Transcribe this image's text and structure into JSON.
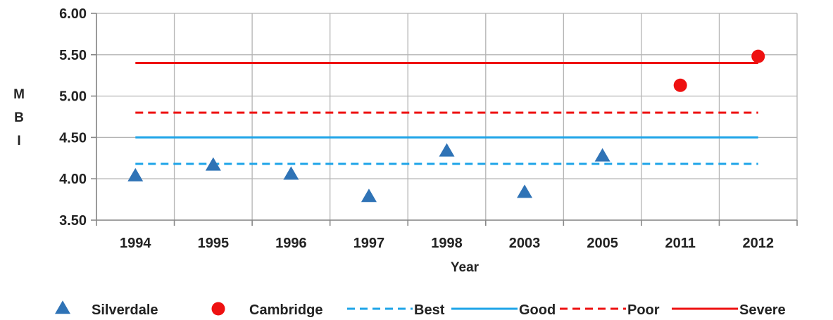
{
  "chart_data": {
    "type": "scatter",
    "categories": [
      "1994",
      "1995",
      "1996",
      "1997",
      "1998",
      "2003",
      "2005",
      "2011",
      "2012"
    ],
    "ylabel": "MBI",
    "xlabel": "Year",
    "ylim": [
      3.5,
      6.0
    ],
    "yticks": [
      "3.50",
      "4.00",
      "4.50",
      "5.00",
      "5.50",
      "6.00"
    ],
    "grid": true,
    "legend_position": "bottom",
    "series": [
      {
        "name": "Silverdale",
        "kind": "points",
        "marker": "triangle",
        "color": "#2f73b6",
        "points": [
          {
            "x": "1994",
            "y": 4.03
          },
          {
            "x": "1995",
            "y": 4.16
          },
          {
            "x": "1996",
            "y": 4.05
          },
          {
            "x": "1997",
            "y": 3.78
          },
          {
            "x": "1998",
            "y": 4.33
          },
          {
            "x": "2003",
            "y": 3.83
          },
          {
            "x": "2005",
            "y": 4.27
          }
        ]
      },
      {
        "name": "Cambridge",
        "kind": "points",
        "marker": "circle",
        "color": "#ee1111",
        "points": [
          {
            "x": "2011",
            "y": 5.13
          },
          {
            "x": "2012",
            "y": 5.48
          }
        ]
      },
      {
        "name": "Best",
        "kind": "threshold",
        "style": "dashed",
        "color": "#1ea4e8",
        "value": 4.18
      },
      {
        "name": "Good",
        "kind": "threshold",
        "style": "solid",
        "color": "#1ea4e8",
        "value": 4.5
      },
      {
        "name": "Poor",
        "kind": "threshold",
        "style": "dashed",
        "color": "#ee1111",
        "value": 4.8
      },
      {
        "name": "Severe",
        "kind": "threshold",
        "style": "solid",
        "color": "#ee1111",
        "value": 5.4
      }
    ]
  }
}
